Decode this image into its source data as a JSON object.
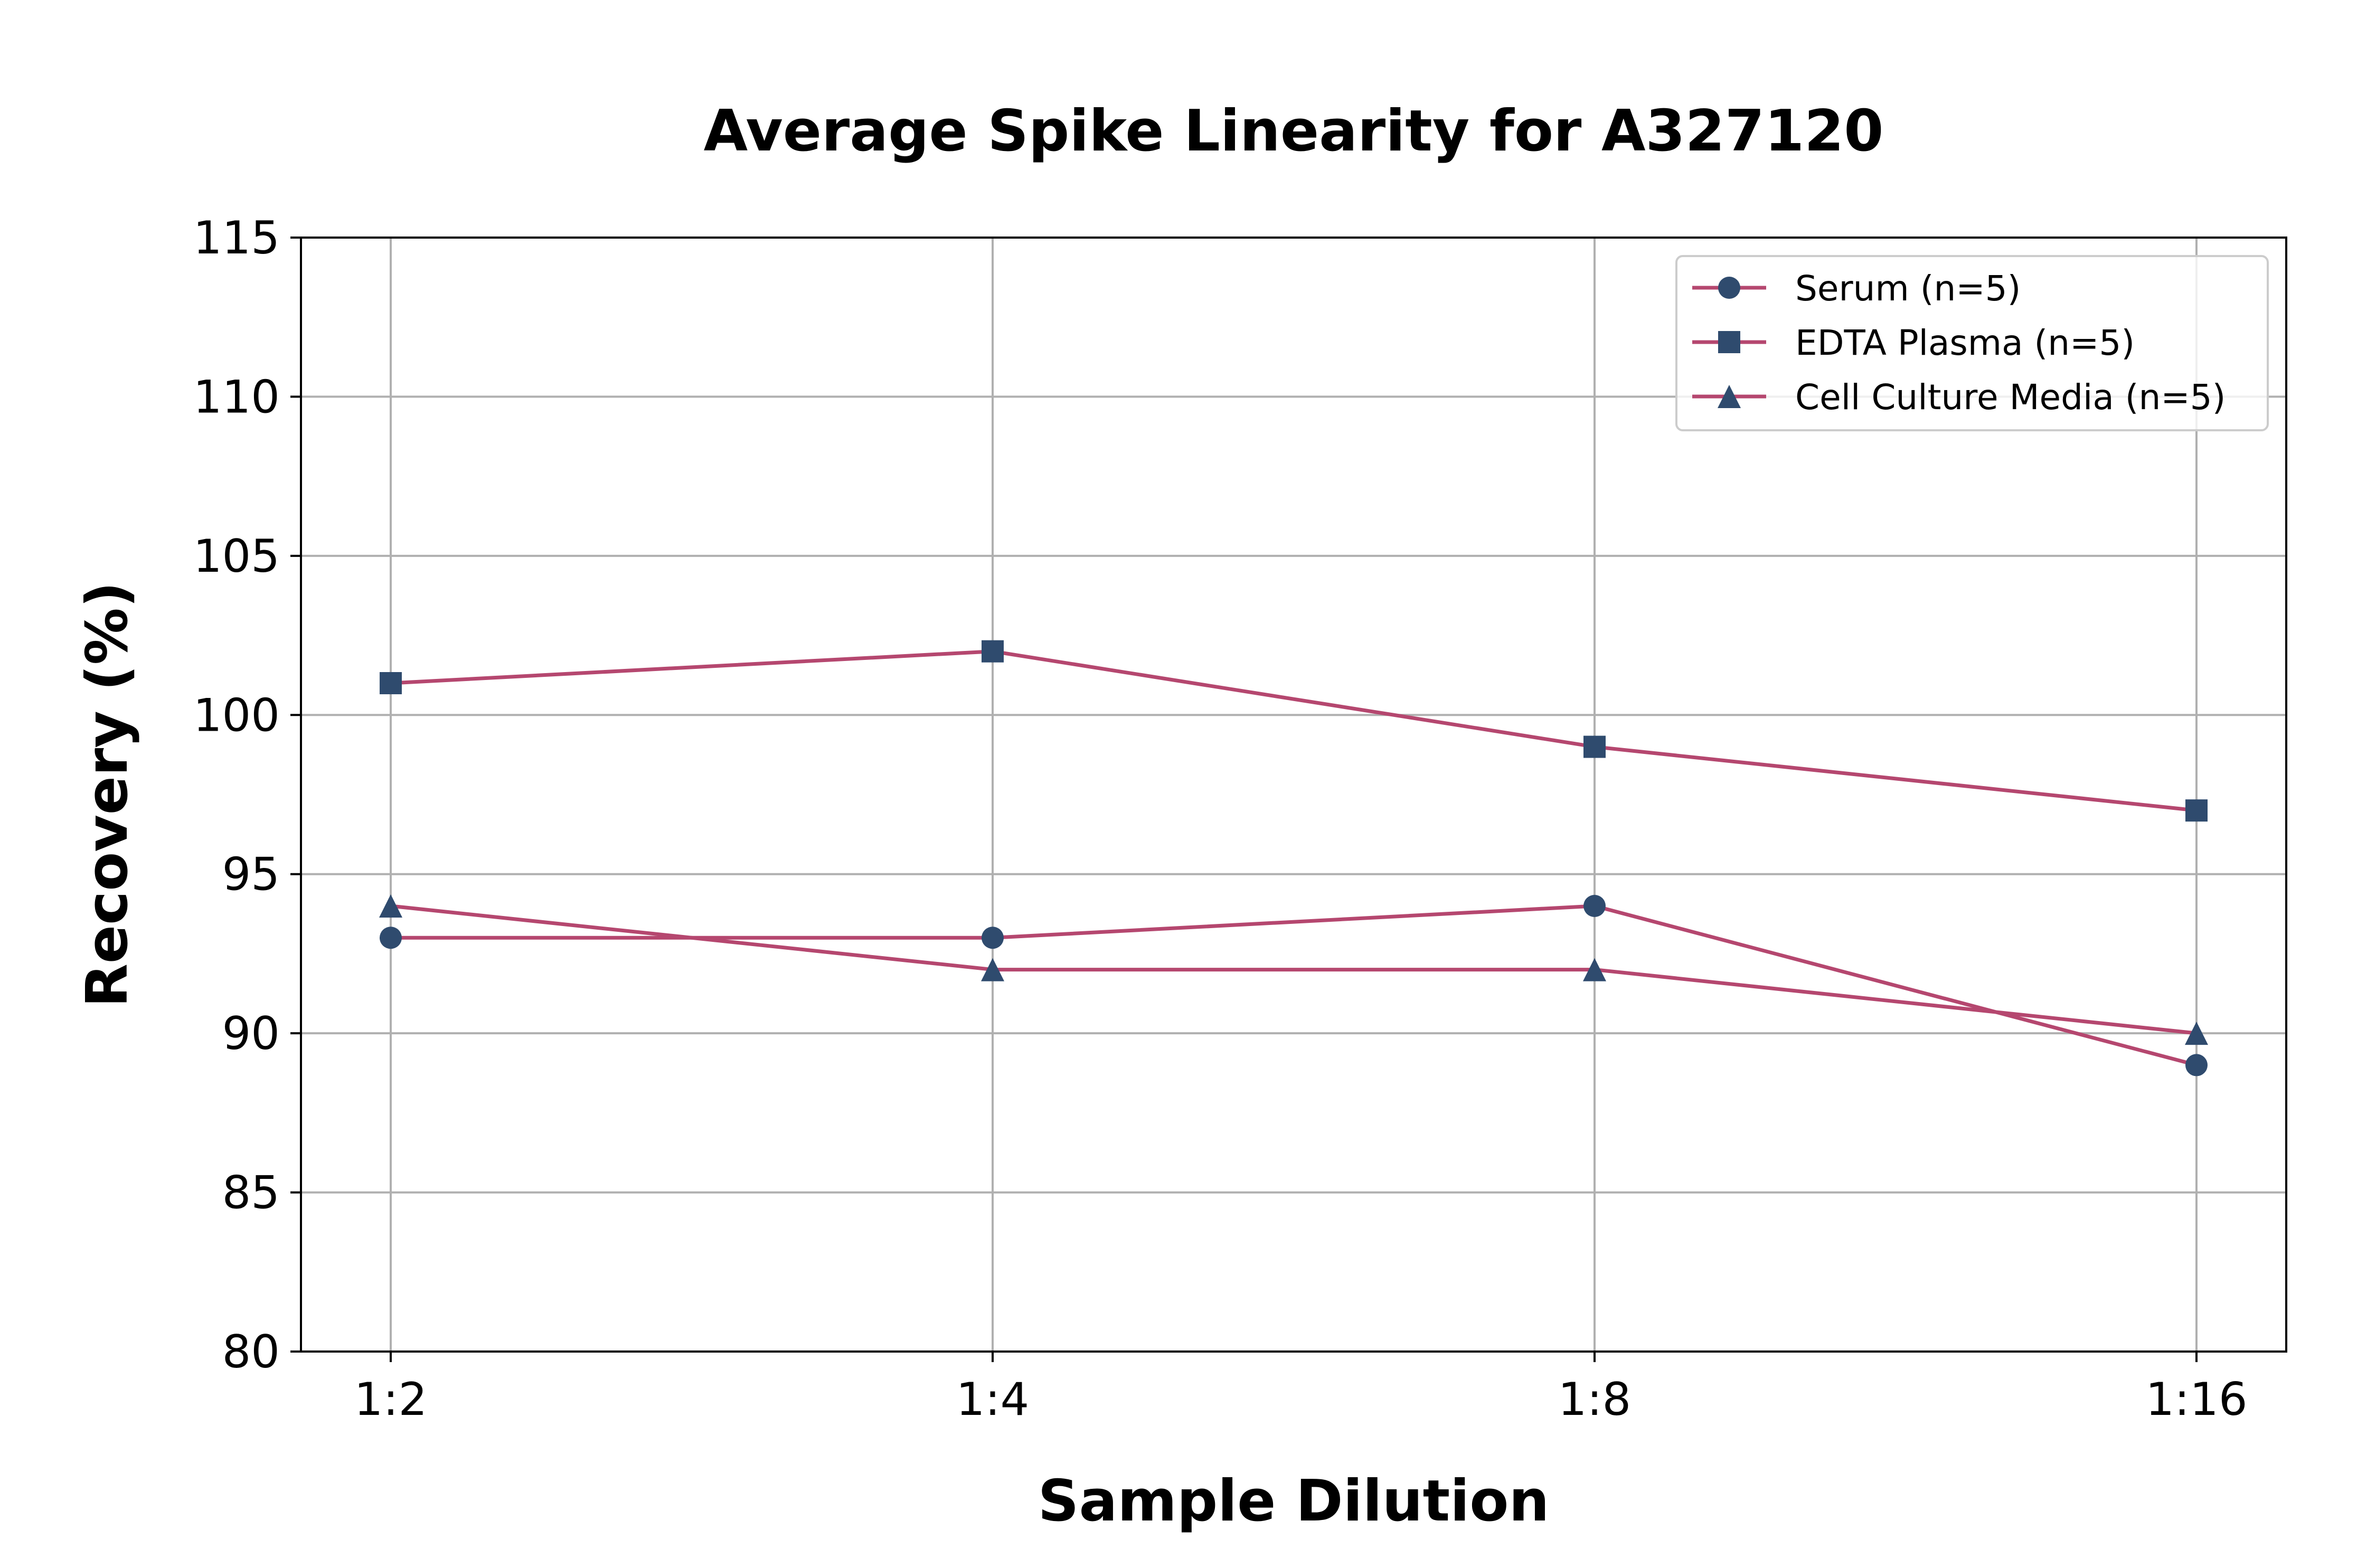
{
  "chart_data": {
    "type": "line",
    "title": "Average Spike Linearity for A327120",
    "xlabel": "Sample Dilution",
    "ylabel": "Recovery (%)",
    "categories": [
      "1:2",
      "1:4",
      "1:8",
      "1:16"
    ],
    "ylim": [
      80,
      115
    ],
    "yticks": [
      80,
      85,
      90,
      95,
      100,
      105,
      110,
      115
    ],
    "grid": true,
    "legend_position": "top-right",
    "line_color": "#b5476f",
    "marker_color": "#2f4b6e",
    "series": [
      {
        "name": "Serum (n=5)",
        "marker": "circle",
        "values": [
          93,
          93,
          94,
          89
        ]
      },
      {
        "name": "EDTA Plasma (n=5)",
        "marker": "square",
        "values": [
          101,
          102,
          99,
          97
        ]
      },
      {
        "name": "Cell Culture Media (n=5)",
        "marker": "triangle",
        "values": [
          94,
          92,
          92,
          90
        ]
      }
    ]
  }
}
